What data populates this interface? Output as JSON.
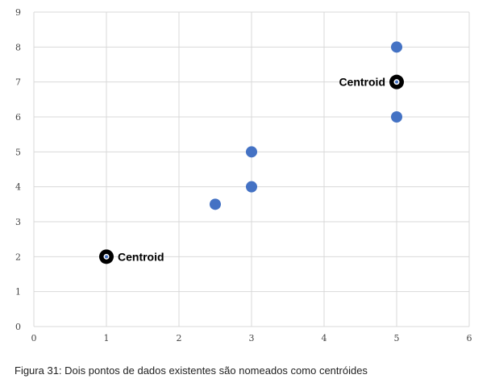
{
  "chart_data": {
    "type": "scatter",
    "title": "",
    "xlabel": "",
    "ylabel": "",
    "xlim": [
      0,
      6
    ],
    "ylim": [
      0,
      9
    ],
    "x_ticks": [
      0,
      1,
      2,
      3,
      4,
      5,
      6
    ],
    "y_ticks": [
      0,
      1,
      2,
      3,
      4,
      5,
      6,
      7,
      8,
      9
    ],
    "grid": true,
    "legend": "none",
    "points": [
      {
        "x": 2.5,
        "y": 3.5
      },
      {
        "x": 3,
        "y": 4
      },
      {
        "x": 3,
        "y": 5
      },
      {
        "x": 5,
        "y": 6
      },
      {
        "x": 5,
        "y": 8
      }
    ],
    "centroids": [
      {
        "x": 1,
        "y": 2,
        "label": "Centroid",
        "label_side": "right"
      },
      {
        "x": 5,
        "y": 7,
        "label": "Centroid",
        "label_side": "left"
      }
    ],
    "colors": {
      "point": "#4472c4",
      "centroid": "#000000",
      "centroid_center": "#4472c4",
      "grid": "#d9d9d9"
    }
  },
  "caption": "Figura 31: Dois pontos de dados existentes são nomeados como centróides"
}
